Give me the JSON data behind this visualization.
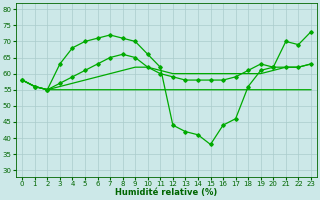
{
  "background_color": "#cce8e8",
  "grid_color": "#aacccc",
  "line_color": "#00aa00",
  "xlabel": "Humidité relative (%)",
  "xlim": [
    -0.5,
    23.5
  ],
  "ylim": [
    28,
    82
  ],
  "yticks": [
    30,
    35,
    40,
    45,
    50,
    55,
    60,
    65,
    70,
    75,
    80
  ],
  "xticks": [
    0,
    1,
    2,
    3,
    4,
    5,
    6,
    7,
    8,
    9,
    10,
    11,
    12,
    13,
    14,
    15,
    16,
    17,
    18,
    19,
    20,
    21,
    22,
    23
  ],
  "line_flat": {
    "x": [
      0,
      1,
      2,
      3,
      4,
      5,
      6,
      7,
      8,
      9,
      10,
      11,
      12,
      13,
      14,
      15,
      16,
      17,
      18,
      19,
      20,
      21,
      22,
      23
    ],
    "y": [
      58,
      56,
      55,
      55,
      55,
      55,
      55,
      55,
      55,
      55,
      55,
      55,
      55,
      55,
      55,
      55,
      55,
      55,
      55,
      55,
      55,
      55,
      55,
      55
    ]
  },
  "line_slow_rise": {
    "x": [
      0,
      1,
      2,
      3,
      4,
      5,
      6,
      7,
      8,
      9,
      10,
      11,
      12,
      13,
      14,
      15,
      16,
      17,
      18,
      19,
      20,
      21,
      22,
      23
    ],
    "y": [
      58,
      56,
      55,
      56,
      57,
      58,
      59,
      60,
      61,
      62,
      62,
      61,
      60,
      60,
      60,
      60,
      60,
      60,
      60,
      60,
      61,
      62,
      62,
      63
    ]
  },
  "line_medium_rise": {
    "x": [
      0,
      1,
      2,
      3,
      4,
      5,
      6,
      7,
      8,
      9,
      10,
      11,
      12,
      13,
      14,
      15,
      16,
      17,
      18,
      19,
      20,
      21,
      22,
      23
    ],
    "y": [
      58,
      56,
      55,
      57,
      59,
      61,
      63,
      65,
      66,
      65,
      62,
      60,
      59,
      58,
      58,
      58,
      58,
      59,
      61,
      63,
      62,
      62,
      62,
      63
    ]
  },
  "line_peak": {
    "x": [
      0,
      1,
      2,
      3,
      4,
      5,
      6,
      7,
      8,
      9,
      10,
      11,
      12,
      13,
      14,
      15,
      16,
      17,
      18,
      19,
      20,
      21,
      22,
      23
    ],
    "y": [
      58,
      56,
      55,
      63,
      68,
      70,
      71,
      72,
      71,
      70,
      66,
      62,
      44,
      42,
      41,
      38,
      44,
      46,
      56,
      61,
      62,
      70,
      69,
      73
    ]
  }
}
